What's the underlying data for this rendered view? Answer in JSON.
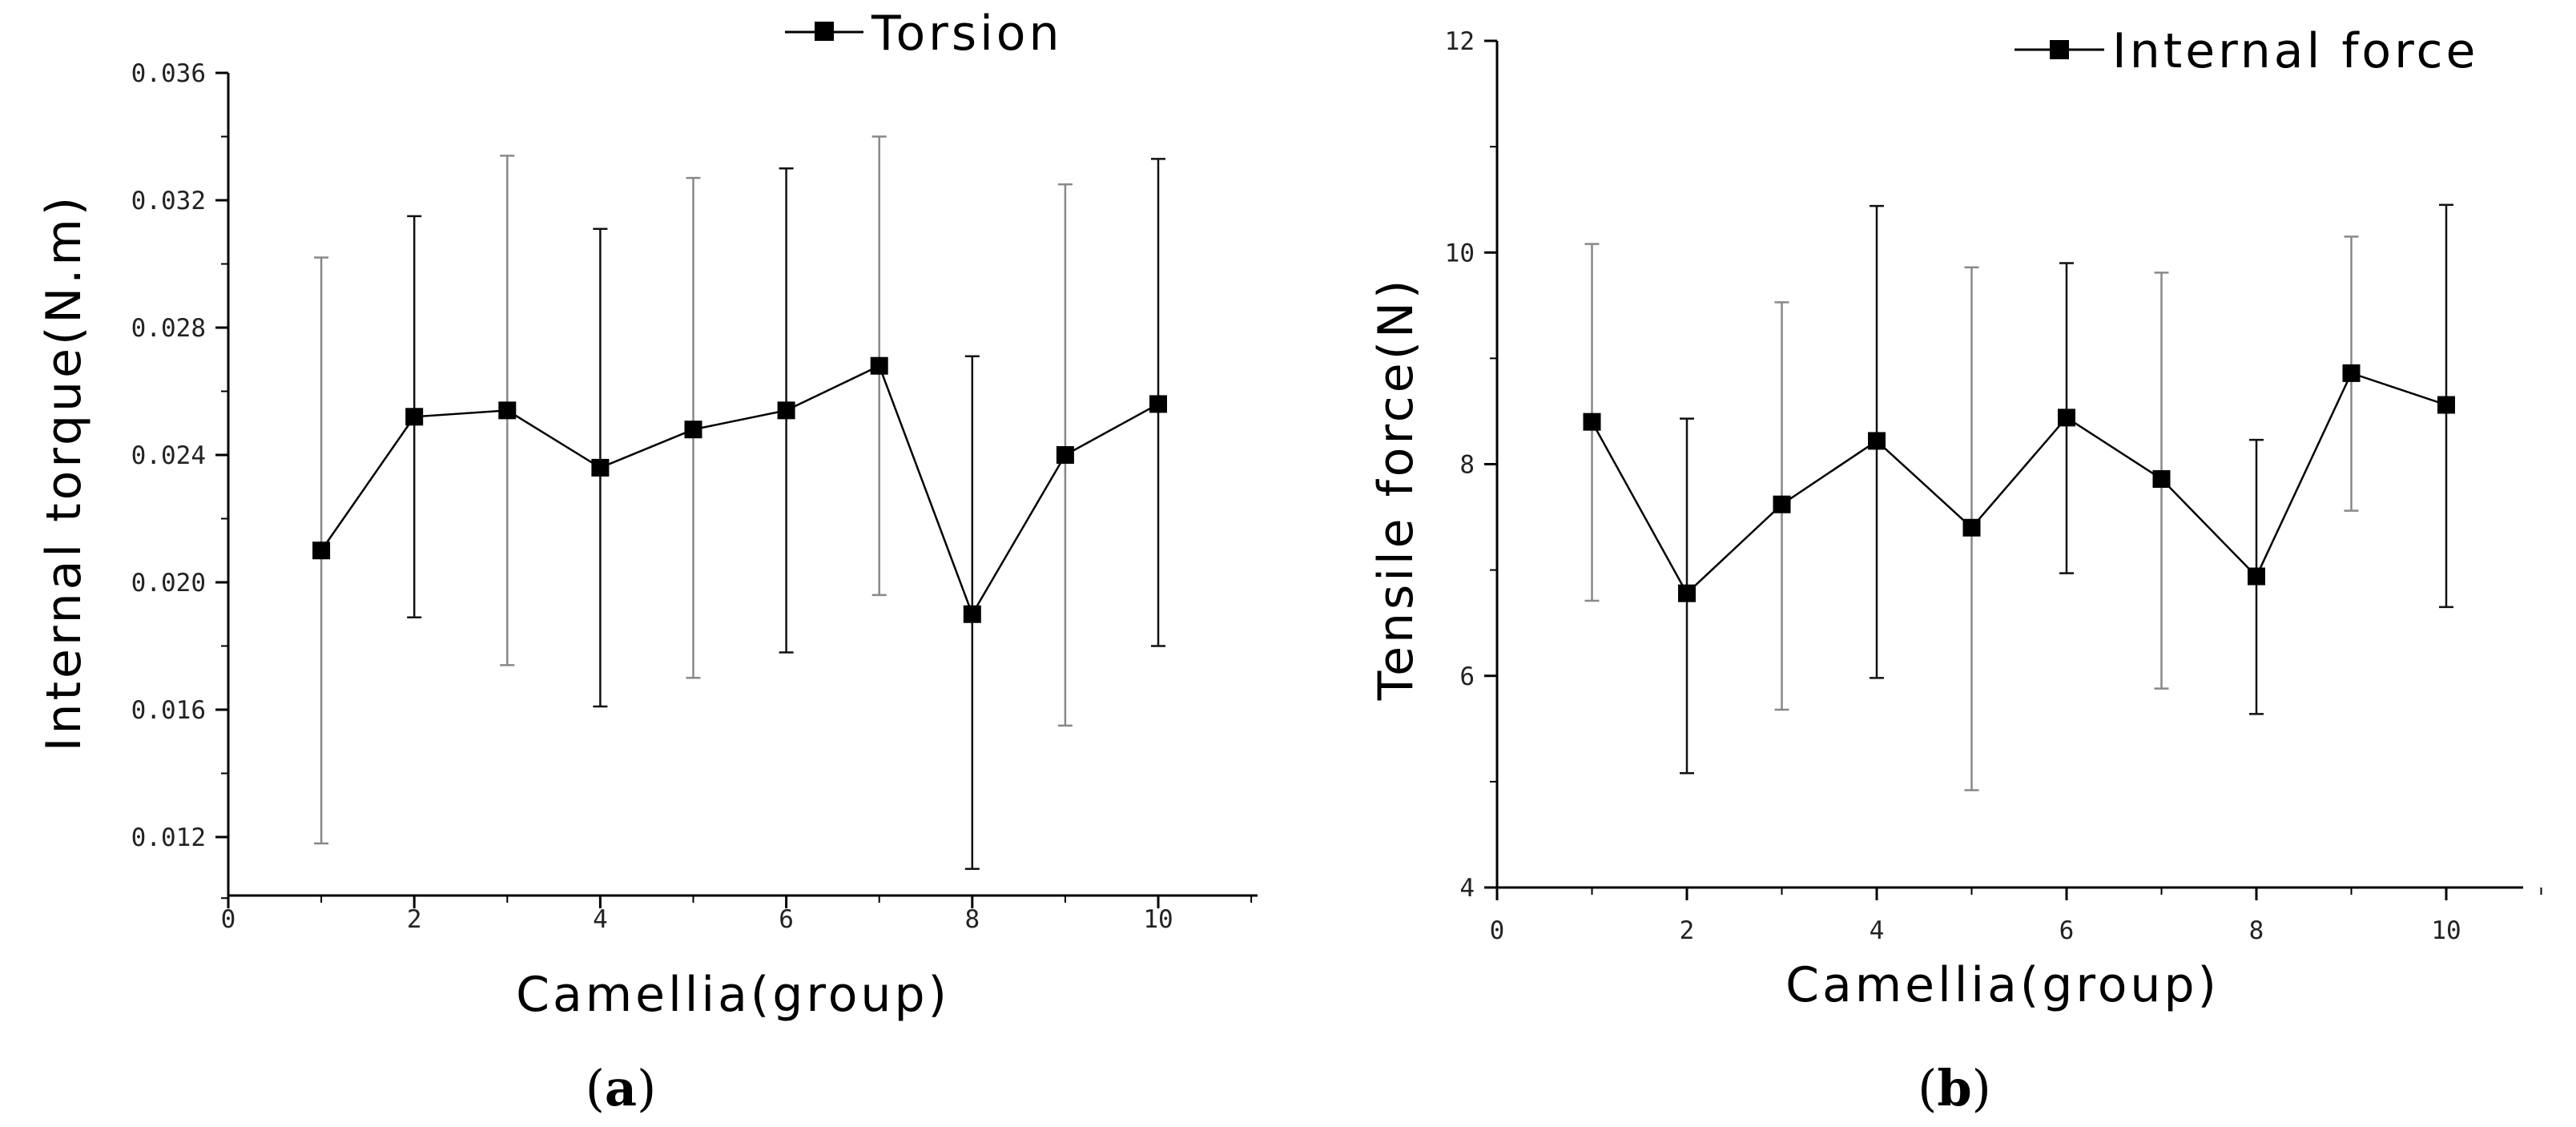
{
  "figure": {
    "panel_a_caption": "a",
    "panel_b_caption": "b"
  },
  "chart_data": [
    {
      "type": "line",
      "title": "",
      "legend": "Torsion",
      "legend_position": "top-right",
      "xlabel": "Camellia(group)",
      "ylabel": "Internal torque(N.m)",
      "xlim": [
        0,
        11
      ],
      "ylim": [
        0.01,
        0.036
      ],
      "xticks": [
        "0",
        "2",
        "4",
        "6",
        "8",
        "10"
      ],
      "xtick_values": [
        0,
        2,
        4,
        6,
        8,
        10
      ],
      "yticks": [
        "0.012",
        "0.016",
        "0.020",
        "0.024",
        "0.028",
        "0.032",
        "0.036"
      ],
      "ytick_values": [
        0.012,
        0.016,
        0.02,
        0.024,
        0.028,
        0.032,
        0.036
      ],
      "series": [
        {
          "name": "Torsion",
          "x": [
            1,
            2,
            3,
            4,
            5,
            6,
            7,
            8,
            9,
            10
          ],
          "y": [
            0.021,
            0.0252,
            0.0254,
            0.0236,
            0.0248,
            0.0254,
            0.0268,
            0.019,
            0.024,
            0.0256
          ],
          "err_low": [
            0.0118,
            0.0189,
            0.0174,
            0.0161,
            0.017,
            0.0178,
            0.0196,
            0.011,
            0.0155,
            0.018
          ],
          "err_high": [
            0.0302,
            0.0315,
            0.0334,
            0.0311,
            0.0327,
            0.033,
            0.034,
            0.0271,
            0.0325,
            0.0333
          ]
        }
      ]
    },
    {
      "type": "line",
      "title": "",
      "legend": "Internal force",
      "legend_position": "top-right",
      "xlabel": "Camellia(group)",
      "ylabel": "Tensile force(N)",
      "xlim": [
        0,
        11
      ],
      "ylim": [
        4,
        12
      ],
      "xticks": [
        "0",
        "2",
        "4",
        "6",
        "8",
        "10"
      ],
      "xtick_values": [
        0,
        2,
        4,
        6,
        8,
        10
      ],
      "yticks": [
        "4",
        "6",
        "8",
        "10",
        "12"
      ],
      "ytick_values": [
        4,
        6,
        8,
        10,
        12
      ],
      "series": [
        {
          "name": "Internal force",
          "x": [
            1,
            2,
            3,
            4,
            5,
            6,
            7,
            8,
            9,
            10
          ],
          "y": [
            8.4,
            6.78,
            7.62,
            8.22,
            7.4,
            8.44,
            7.86,
            6.94,
            8.86,
            8.56
          ],
          "err_low": [
            6.71,
            5.08,
            5.68,
            5.98,
            4.92,
            6.97,
            5.88,
            5.64,
            7.56,
            6.65
          ],
          "err_high": [
            10.08,
            8.43,
            9.53,
            10.44,
            9.86,
            9.9,
            9.81,
            8.23,
            10.15,
            10.45
          ]
        }
      ]
    }
  ]
}
